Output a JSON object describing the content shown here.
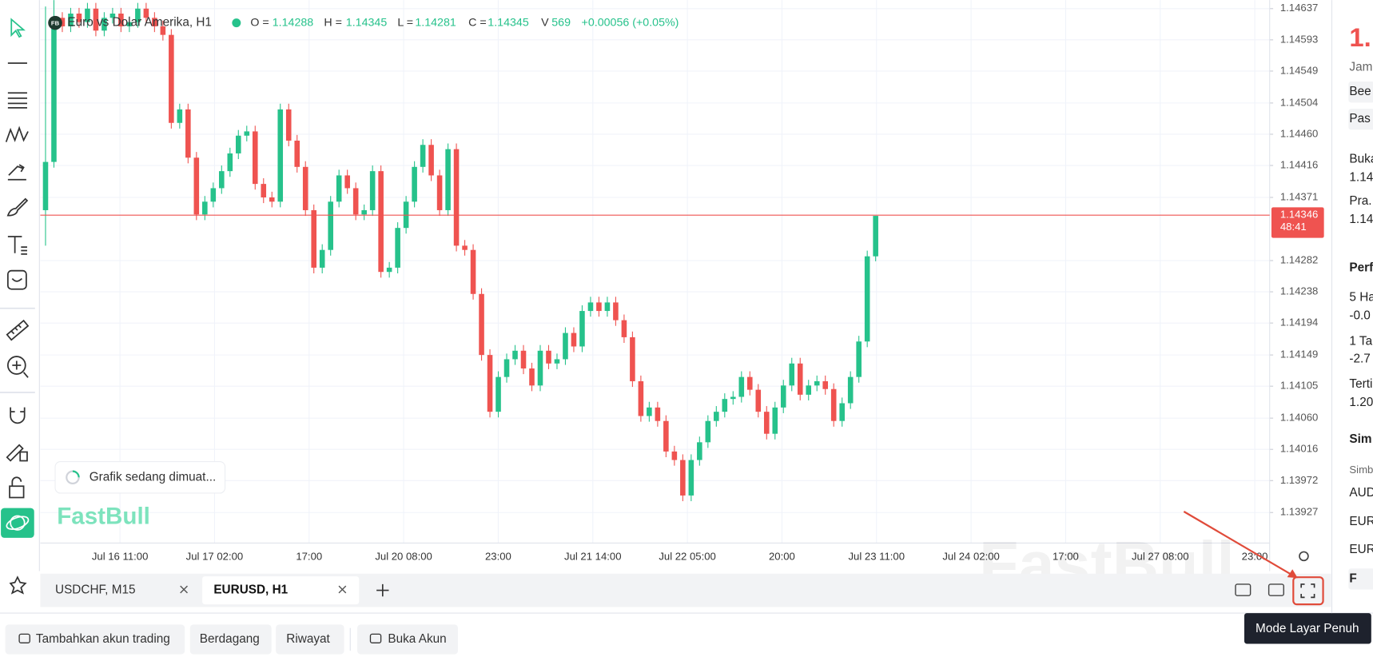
{
  "chart_data": {
    "type": "candlestick",
    "title": "Euro vs Dolar Amerika, H1",
    "symbol_badge": "FB",
    "ohlc_labels": [
      "O =",
      "H =",
      "L =",
      "C ="
    ],
    "volume_label": "V",
    "volume": 569,
    "change": "+0.00056 (+0.05%)",
    "xticks": [
      "Jul 16 11:00",
      "Jul 17 02:00",
      "17:00",
      "Jul 20 08:00",
      "23:00",
      "Jul 21 14:00",
      "Jul 22 05:00",
      "20:00",
      "Jul 23 11:00",
      "Jul 24 02:00",
      "17:00",
      "Jul 27 08:00",
      "23:00"
    ],
    "ylim": [
      1.13884,
      1.14649
    ],
    "yticks": [
      1.14637,
      1.14593,
      1.14549,
      1.14504,
      {
        "value": 1.1446,
        "label": "1.14460"
      },
      1.14416,
      1.14371,
      1.14282,
      1.14238,
      1.14194,
      1.14149,
      1.14105,
      {
        "value": 1.1406,
        "label": "1.14060"
      },
      1.14016,
      1.13972,
      1.13927
    ],
    "grid": true,
    "up_color": "#26c28b",
    "down_color": "#ef5350",
    "last_price": 1.14346,
    "countdown": "48:41",
    "candles": [
      [
        1.14353,
        1.1464,
        1.14303,
        1.14421
      ],
      [
        1.14421,
        1.1466,
        1.14413,
        1.14624
      ],
      [
        1.14624,
        1.14632,
        1.14604,
        1.14612
      ],
      [
        1.14612,
        1.14638,
        1.14604,
        1.1463
      ],
      [
        1.1463,
        1.14638,
        1.1461,
        1.14618
      ],
      [
        1.14618,
        1.14645,
        1.1461,
        1.14637
      ],
      [
        1.14637,
        1.14645,
        1.14598,
        1.14606
      ],
      [
        1.14606,
        1.14632,
        1.14598,
        1.14624
      ],
      [
        1.14624,
        1.14638,
        1.14616,
        1.1463
      ],
      [
        1.1463,
        1.14638,
        1.14604,
        1.14612
      ],
      [
        1.14612,
        1.14626,
        1.14604,
        1.14618
      ],
      [
        1.14618,
        1.14645,
        1.1461,
        1.14637
      ],
      [
        1.14637,
        1.14645,
        1.14616,
        1.14624
      ],
      [
        1.14624,
        1.14632,
        1.14604,
        1.14612
      ],
      [
        1.14612,
        1.1462,
        1.14592,
        1.146
      ],
      [
        1.146,
        1.14608,
        1.14468,
        1.14476
      ],
      [
        1.14476,
        1.14503,
        1.14468,
        1.14495
      ],
      [
        1.14495,
        1.14503,
        1.14419,
        1.14427
      ],
      [
        1.14427,
        1.14435,
        1.14339,
        1.14347
      ],
      [
        1.14347,
        1.14373,
        1.14339,
        1.14365
      ],
      [
        1.14365,
        1.14392,
        1.14357,
        1.14384
      ],
      [
        1.14384,
        1.14416,
        1.14376,
        1.14408
      ],
      [
        1.14408,
        1.14441,
        1.144,
        1.14433
      ],
      [
        1.14433,
        1.14466,
        1.14425,
        1.14458
      ],
      [
        1.14458,
        1.14472,
        1.1445,
        1.14464
      ],
      [
        1.14464,
        1.14472,
        1.14382,
        1.1439
      ],
      [
        1.1439,
        1.14398,
        1.14363,
        1.14371
      ],
      [
        1.14371,
        1.14379,
        1.14357,
        1.14365
      ],
      [
        1.14365,
        1.14503,
        1.14357,
        1.14495
      ],
      [
        1.14495,
        1.14503,
        1.14443,
        1.14451
      ],
      [
        1.14451,
        1.14459,
        1.14406,
        1.14414
      ],
      [
        1.14414,
        1.14422,
        1.14345,
        1.14353
      ],
      [
        1.14353,
        1.14361,
        1.14264,
        1.14272
      ],
      [
        1.14272,
        1.14305,
        1.14264,
        1.14297
      ],
      [
        1.14297,
        1.14373,
        1.14289,
        1.14365
      ],
      [
        1.14365,
        1.1441,
        1.14357,
        1.14402
      ],
      [
        1.14402,
        1.1441,
        1.14376,
        1.14384
      ],
      [
        1.14384,
        1.14392,
        1.14339,
        1.14347
      ],
      [
        1.14347,
        1.14361,
        1.14339,
        1.14353
      ],
      [
        1.14353,
        1.14416,
        1.14345,
        1.14408
      ],
      [
        1.14408,
        1.14416,
        1.14258,
        1.14266
      ],
      [
        1.14266,
        1.1428,
        1.14258,
        1.14272
      ],
      [
        1.14272,
        1.14336,
        1.14264,
        1.14328
      ],
      [
        1.14328,
        1.14373,
        1.1432,
        1.14365
      ],
      [
        1.14365,
        1.14422,
        1.14357,
        1.14414
      ],
      [
        1.14414,
        1.14453,
        1.14406,
        1.14445
      ],
      [
        1.14445,
        1.14453,
        1.14394,
        1.14402
      ],
      [
        1.14402,
        1.1441,
        1.14345,
        1.14353
      ],
      [
        1.14353,
        1.14447,
        1.14345,
        1.14439
      ],
      [
        1.14439,
        1.14447,
        1.14295,
        1.14303
      ],
      [
        1.14303,
        1.14311,
        1.14289,
        1.14297
      ],
      [
        1.14297,
        1.14305,
        1.14227,
        1.14235
      ],
      [
        1.14235,
        1.14243,
        1.14141,
        1.14149
      ],
      [
        1.14149,
        1.14157,
        1.14061,
        1.14069
      ],
      [
        1.14069,
        1.14126,
        1.14061,
        1.14118
      ],
      [
        1.14118,
        1.14151,
        1.1411,
        1.14143
      ],
      [
        1.14143,
        1.14163,
        1.14135,
        1.14155
      ],
      [
        1.14155,
        1.14163,
        1.14122,
        1.1413
      ],
      [
        1.1413,
        1.14138,
        1.14098,
        1.14106
      ],
      [
        1.14106,
        1.14163,
        1.14098,
        1.14155
      ],
      [
        1.14155,
        1.14163,
        1.14129,
        1.14137
      ],
      [
        1.14137,
        1.14151,
        1.14129,
        1.14143
      ],
      [
        1.14143,
        1.14188,
        1.14135,
        1.1418
      ],
      [
        1.1418,
        1.14188,
        1.14153,
        1.14161
      ],
      [
        1.14161,
        1.14219,
        1.14153,
        1.14211
      ],
      [
        1.14211,
        1.14231,
        1.14203,
        1.14223
      ],
      [
        1.14223,
        1.14231,
        1.14203,
        1.14211
      ],
      [
        1.14211,
        1.14231,
        1.14203,
        1.14223
      ],
      [
        1.14223,
        1.14231,
        1.1419,
        1.14198
      ],
      [
        1.14198,
        1.14206,
        1.14166,
        1.14174
      ],
      [
        1.14174,
        1.14182,
        1.14104,
        1.14112
      ],
      [
        1.14112,
        1.1412,
        1.14055,
        1.14063
      ],
      [
        1.14063,
        1.14083,
        1.14055,
        1.14075
      ],
      [
        1.14075,
        1.14083,
        1.14048,
        1.14056
      ],
      [
        1.14056,
        1.14064,
        1.14005,
        1.14013
      ],
      [
        1.14013,
        1.14021,
        1.13993,
        1.14001
      ],
      [
        1.14001,
        1.14009,
        1.13943,
        1.13951
      ],
      [
        1.13951,
        1.14009,
        1.13943,
        1.14001
      ],
      [
        1.14001,
        1.14034,
        1.13993,
        1.14026
      ],
      [
        1.14026,
        1.14064,
        1.14018,
        1.14056
      ],
      [
        1.14056,
        1.14077,
        1.14048,
        1.14069
      ],
      [
        1.14069,
        1.14095,
        1.14061,
        1.14087
      ],
      [
        1.14087,
        1.14098,
        1.14079,
        1.1409
      ],
      [
        1.1409,
        1.14126,
        1.14082,
        1.14118
      ],
      [
        1.14118,
        1.14126,
        1.14092,
        1.141
      ],
      [
        1.141,
        1.14108,
        1.14061,
        1.14069
      ],
      [
        1.14069,
        1.14077,
        1.1403,
        1.14038
      ],
      [
        1.14038,
        1.14083,
        1.1403,
        1.14075
      ],
      [
        1.14075,
        1.14114,
        1.14067,
        1.14106
      ],
      [
        1.14106,
        1.14145,
        1.14098,
        1.14137
      ],
      [
        1.14137,
        1.14145,
        1.14085,
        1.14093
      ],
      [
        1.14093,
        1.14114,
        1.14085,
        1.14106
      ],
      [
        1.14106,
        1.1412,
        1.14098,
        1.14112
      ],
      [
        1.14112,
        1.1412,
        1.14093,
        1.14101
      ],
      [
        1.14101,
        1.14109,
        1.14048,
        1.14056
      ],
      [
        1.14056,
        1.14089,
        1.14048,
        1.14081
      ],
      [
        1.14081,
        1.14126,
        1.14073,
        1.14118
      ],
      [
        1.14118,
        1.14176,
        1.1411,
        1.14168
      ],
      [
        1.14168,
        1.14296,
        1.1416,
        1.14288
      ],
      [
        1.14288,
        1.14345,
        1.14281,
        1.14345
      ]
    ]
  },
  "ui": {
    "loading": "Grafik sedang dimuat...",
    "logo": "FastBull",
    "tabs": [
      "USDCHF, M15",
      "EURUSD, H1"
    ],
    "buttons": [
      "Tambahkan akun trading",
      "Berdagang",
      "Riwayat",
      "Buka Akun"
    ],
    "tooltip": "Mode Layar Penuh",
    "side_panel": [
      "1.",
      "Jam",
      "Bee",
      "Pas",
      "Buka",
      "1.14",
      "Pra.",
      "1.14",
      "Perf",
      "5 Ha",
      "-0.0",
      "1 Ta",
      "-2.7",
      "Terti",
      "1.20",
      "Sim",
      "Simb",
      "AUD",
      "EUR",
      "EUR",
      "F"
    ]
  }
}
